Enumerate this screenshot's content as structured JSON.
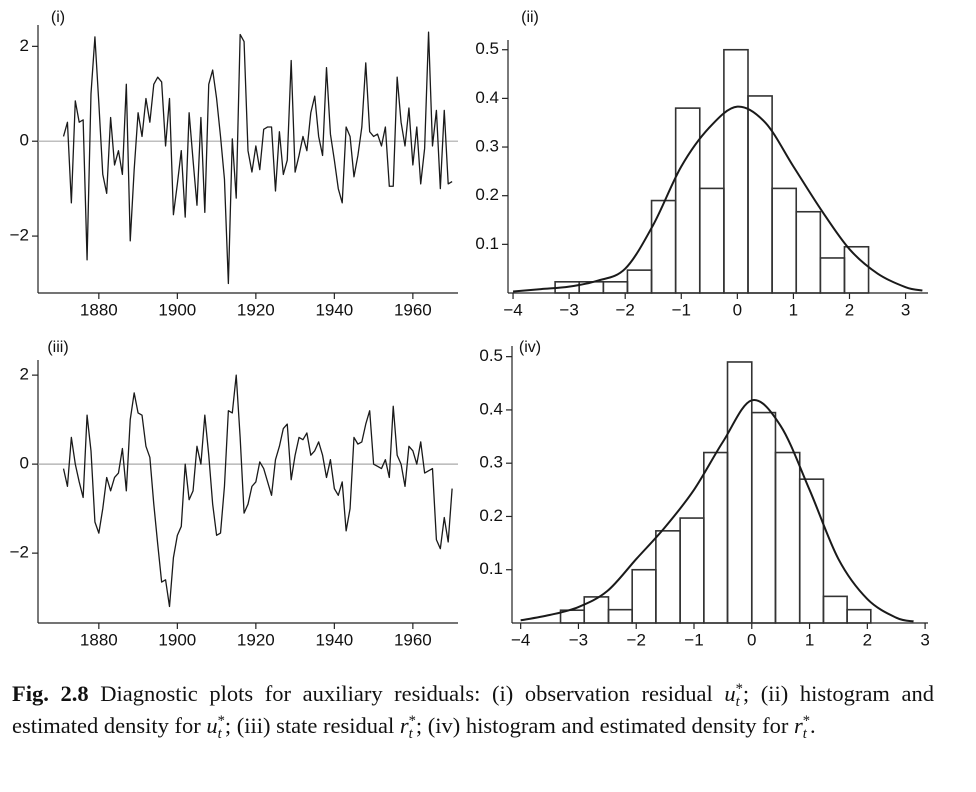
{
  "chart_data": [
    {
      "type": "line",
      "title": "(i)",
      "color": "#1a1a1a",
      "zero_line": true,
      "x": [
        1871,
        1872,
        1873,
        1874,
        1875,
        1876,
        1877,
        1878,
        1879,
        1880,
        1881,
        1882,
        1883,
        1884,
        1885,
        1886,
        1887,
        1888,
        1889,
        1890,
        1891,
        1892,
        1893,
        1894,
        1895,
        1896,
        1897,
        1898,
        1899,
        1900,
        1901,
        1902,
        1903,
        1904,
        1905,
        1906,
        1907,
        1908,
        1909,
        1910,
        1911,
        1912,
        1913,
        1914,
        1915,
        1916,
        1917,
        1918,
        1919,
        1920,
        1921,
        1922,
        1923,
        1924,
        1925,
        1926,
        1927,
        1928,
        1929,
        1930,
        1931,
        1932,
        1933,
        1934,
        1935,
        1936,
        1937,
        1938,
        1939,
        1940,
        1941,
        1942,
        1943,
        1944,
        1945,
        1946,
        1947,
        1948,
        1949,
        1950,
        1951,
        1952,
        1953,
        1954,
        1955,
        1956,
        1957,
        1958,
        1959,
        1960,
        1961,
        1962,
        1963,
        1964,
        1965,
        1966,
        1967,
        1968,
        1969,
        1970
      ],
      "values": [
        0.1,
        0.4,
        -1.3,
        0.85,
        0.4,
        0.45,
        -2.5,
        1.0,
        2.2,
        0.8,
        -0.7,
        -1.1,
        0.5,
        -0.5,
        -0.2,
        -0.7,
        1.2,
        -2.1,
        -0.6,
        0.6,
        0.1,
        0.9,
        0.4,
        1.2,
        1.35,
        1.25,
        -0.1,
        0.9,
        -1.55,
        -0.9,
        -0.2,
        -1.6,
        0.6,
        -0.4,
        -1.35,
        0.5,
        -1.5,
        1.2,
        1.5,
        0.9,
        0.1,
        -0.8,
        -3.0,
        0.05,
        -1.2,
        2.25,
        2.1,
        -0.2,
        -0.65,
        -0.1,
        -0.6,
        0.25,
        0.3,
        0.3,
        -1.05,
        0.2,
        -0.7,
        -0.4,
        1.7,
        -0.65,
        -0.3,
        0.1,
        -0.2,
        0.6,
        0.95,
        0.1,
        -0.3,
        1.55,
        0.15,
        -0.4,
        -1.0,
        -1.3,
        0.3,
        0.1,
        -0.75,
        -0.3,
        0.3,
        1.65,
        0.2,
        0.1,
        0.15,
        -0.1,
        0.3,
        -0.95,
        -0.95,
        1.35,
        0.4,
        -0.1,
        0.7,
        -0.5,
        0.3,
        -0.9,
        -0.15,
        2.3,
        -0.1,
        0.65,
        -1.0,
        0.65,
        -0.9,
        -0.85
      ],
      "xlim": [
        1864.5,
        1971.5
      ],
      "ylim": [
        -3.2,
        2.45
      ],
      "xticks": [
        1880,
        1900,
        1920,
        1940,
        1960
      ],
      "yticks": [
        {
          "value": -2,
          "label": "−2"
        },
        0,
        2
      ]
    },
    {
      "type": "histogram",
      "title": "(ii)",
      "color": "#333333",
      "bins": [
        -3.25,
        -2.82,
        -2.39,
        -1.96,
        -1.53,
        -1.1,
        -0.67,
        -0.24,
        0.19,
        0.62,
        1.05,
        1.48,
        1.91,
        2.34
      ],
      "values": [
        0.023,
        0.023,
        0.023,
        0.047,
        0.19,
        0.38,
        0.215,
        0.5,
        0.405,
        0.215,
        0.167,
        0.072,
        0.095
      ],
      "density": {
        "x": [
          -4,
          -3.5,
          -3,
          -2.5,
          -2,
          -1.5,
          -1,
          -0.5,
          0,
          0.5,
          1,
          1.5,
          2,
          2.5,
          3,
          3.3
        ],
        "y": [
          0.003,
          0.008,
          0.013,
          0.025,
          0.05,
          0.14,
          0.26,
          0.34,
          0.383,
          0.35,
          0.26,
          0.17,
          0.09,
          0.04,
          0.012,
          0.005
        ]
      },
      "xlim": [
        -4.09,
        3.4
      ],
      "ylim": [
        0,
        0.52
      ],
      "xticks": [
        {
          "value": -4,
          "label": "−4"
        },
        {
          "value": -3,
          "label": "−3"
        },
        {
          "value": -2,
          "label": "−2"
        },
        {
          "value": -1,
          "label": "−1"
        },
        0,
        1,
        2,
        3
      ],
      "yticks": [
        0.1,
        0.2,
        0.3,
        0.4,
        0.5
      ]
    },
    {
      "type": "line",
      "title": "(iii)",
      "color": "#1a1a1a",
      "zero_line": true,
      "x": [
        1871,
        1872,
        1873,
        1874,
        1875,
        1876,
        1877,
        1878,
        1879,
        1880,
        1881,
        1882,
        1883,
        1884,
        1885,
        1886,
        1887,
        1888,
        1889,
        1890,
        1891,
        1892,
        1893,
        1894,
        1895,
        1896,
        1897,
        1898,
        1899,
        1900,
        1901,
        1902,
        1903,
        1904,
        1905,
        1906,
        1907,
        1908,
        1909,
        1910,
        1911,
        1912,
        1913,
        1914,
        1915,
        1916,
        1917,
        1918,
        1919,
        1920,
        1921,
        1922,
        1923,
        1924,
        1925,
        1926,
        1927,
        1928,
        1929,
        1930,
        1931,
        1932,
        1933,
        1934,
        1935,
        1936,
        1937,
        1938,
        1939,
        1940,
        1941,
        1942,
        1943,
        1944,
        1945,
        1946,
        1947,
        1948,
        1949,
        1950,
        1951,
        1952,
        1953,
        1954,
        1955,
        1956,
        1957,
        1958,
        1959,
        1960,
        1961,
        1962,
        1963,
        1964,
        1965,
        1966,
        1967,
        1968,
        1969,
        1970
      ],
      "values": [
        -0.1,
        -0.5,
        0.6,
        0.0,
        -0.4,
        -0.75,
        1.1,
        0.3,
        -1.3,
        -1.55,
        -1.0,
        -0.3,
        -0.6,
        -0.3,
        -0.2,
        0.35,
        -0.6,
        1.0,
        1.6,
        1.15,
        1.1,
        0.4,
        0.15,
        -0.9,
        -1.8,
        -2.65,
        -2.6,
        -3.2,
        -2.1,
        -1.6,
        -1.4,
        0.0,
        -0.8,
        -0.6,
        0.4,
        0.0,
        1.1,
        0.2,
        -0.9,
        -1.6,
        -1.55,
        -0.5,
        1.2,
        1.15,
        2.0,
        0.6,
        -1.1,
        -0.9,
        -0.5,
        -0.4,
        0.05,
        -0.1,
        -0.4,
        -0.7,
        0.1,
        0.4,
        0.8,
        0.9,
        -0.35,
        0.2,
        0.6,
        0.55,
        0.7,
        0.2,
        0.3,
        0.5,
        0.2,
        -0.3,
        0.1,
        -0.55,
        -0.7,
        -0.4,
        -1.5,
        -1.0,
        0.6,
        0.45,
        0.5,
        0.9,
        1.2,
        0.0,
        -0.05,
        -0.1,
        0.1,
        -0.3,
        1.3,
        0.2,
        0.0,
        -0.5,
        0.4,
        0.3,
        0.0,
        0.5,
        -0.2,
        -0.15,
        -0.1,
        -1.7,
        -1.9,
        -1.2,
        -1.75,
        -0.55
      ],
      "xlim": [
        1864.5,
        1971.5
      ],
      "ylim": [
        -3.57,
        2.34
      ],
      "xticks": [
        1880,
        1900,
        1920,
        1940,
        1960
      ],
      "yticks": [
        {
          "value": -2,
          "label": "−2"
        },
        0,
        2
      ]
    },
    {
      "type": "histogram",
      "title": "(iv)",
      "color": "#333333",
      "bins": [
        -3.31,
        -2.9,
        -2.48,
        -2.07,
        -1.66,
        -1.24,
        -0.83,
        -0.42,
        0.0,
        0.41,
        0.83,
        1.24,
        1.65,
        2.06
      ],
      "values": [
        0.024,
        0.049,
        0.025,
        0.1,
        0.173,
        0.197,
        0.32,
        0.49,
        0.395,
        0.32,
        0.27,
        0.05,
        0.025
      ],
      "density": {
        "x": [
          -4,
          -3.5,
          -3,
          -2.5,
          -2,
          -1.5,
          -1,
          -0.5,
          0,
          0.5,
          1,
          1.5,
          2,
          2.5,
          2.8
        ],
        "y": [
          0.005,
          0.015,
          0.03,
          0.06,
          0.12,
          0.18,
          0.25,
          0.34,
          0.418,
          0.37,
          0.25,
          0.12,
          0.045,
          0.01,
          0.003
        ]
      },
      "xlim": [
        -4.15,
        3.05
      ],
      "ylim": [
        0,
        0.52
      ],
      "xticks": [
        {
          "value": -4,
          "label": "−4"
        },
        {
          "value": -3,
          "label": "−3"
        },
        {
          "value": -2,
          "label": "−2"
        },
        {
          "value": -1,
          "label": "−1"
        },
        0,
        1,
        2,
        3
      ],
      "yticks": [
        0.1,
        0.2,
        0.3,
        0.4,
        0.5
      ]
    }
  ],
  "caption": {
    "label": "Fig. 2.8",
    "parts": [
      "Diagnostic plots for auxiliary residuals: (i) observation residual ",
      {
        "var": "u",
        "sub": "t",
        "sup": "*"
      },
      "; (ii) histogram and estimated density for ",
      {
        "var": "u",
        "sub": "t",
        "sup": "*"
      },
      "; (iii) state residual ",
      {
        "var": "r",
        "sub": "t",
        "sup": "*"
      },
      "; (iv) histogram and estimated density for ",
      {
        "var": "r",
        "sub": "t",
        "sup": "*"
      },
      "."
    ]
  }
}
